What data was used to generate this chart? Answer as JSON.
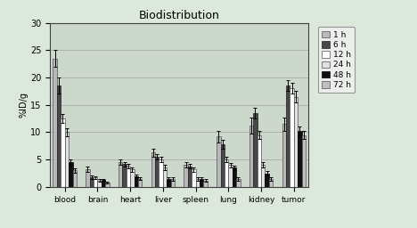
{
  "title": "Biodistribution",
  "ylabel": "%ID/g",
  "categories": [
    "blood",
    "brain",
    "heart",
    "liver",
    "spleen",
    "lung",
    "kidney",
    "tumor"
  ],
  "time_labels": [
    "1 h",
    "6 h",
    "12 h",
    "24 h",
    "48 h",
    "72 h"
  ],
  "bar_colors": [
    "#b8b8b8",
    "#484848",
    "#ffffff",
    "#e0e0e0",
    "#101010",
    "#c0c0c0"
  ],
  "bar_edgecolors": [
    "#505050",
    "#202020",
    "#505050",
    "#505050",
    "#000000",
    "#505050"
  ],
  "values": [
    [
      23.5,
      18.5,
      12.5,
      10.0,
      4.5,
      3.0
    ],
    [
      3.2,
      1.8,
      1.7,
      1.2,
      1.3,
      0.8
    ],
    [
      4.5,
      4.2,
      3.8,
      3.2,
      2.0,
      1.5
    ],
    [
      6.3,
      5.5,
      5.0,
      3.5,
      1.5,
      1.5
    ],
    [
      4.0,
      3.8,
      3.2,
      1.5,
      1.5,
      1.2
    ],
    [
      9.2,
      7.8,
      5.0,
      4.0,
      3.5,
      1.5
    ],
    [
      11.2,
      13.5,
      9.5,
      4.0,
      2.5,
      1.5
    ],
    [
      11.5,
      18.5,
      18.0,
      16.5,
      10.2,
      9.5
    ]
  ],
  "errors": [
    [
      1.5,
      1.5,
      0.8,
      0.8,
      0.5,
      0.4
    ],
    [
      0.5,
      0.3,
      0.3,
      0.3,
      0.2,
      0.2
    ],
    [
      0.5,
      0.4,
      0.4,
      0.4,
      0.3,
      0.2
    ],
    [
      0.7,
      0.5,
      0.5,
      0.5,
      0.3,
      0.3
    ],
    [
      0.5,
      0.4,
      0.4,
      0.3,
      0.3,
      0.2
    ],
    [
      1.0,
      0.8,
      0.5,
      0.4,
      0.4,
      0.3
    ],
    [
      1.5,
      1.0,
      0.8,
      0.5,
      0.4,
      0.3
    ],
    [
      1.2,
      1.0,
      1.0,
      1.0,
      0.8,
      0.8
    ]
  ],
  "ylim": [
    0,
    30
  ],
  "yticks": [
    0,
    5,
    10,
    15,
    20,
    25,
    30
  ],
  "plot_bg_color": "#ccd8cc",
  "outer_bg_color": "#dce8dc",
  "grid_color": "#aaaaaa",
  "figsize": [
    4.68,
    2.56
  ],
  "dpi": 100
}
